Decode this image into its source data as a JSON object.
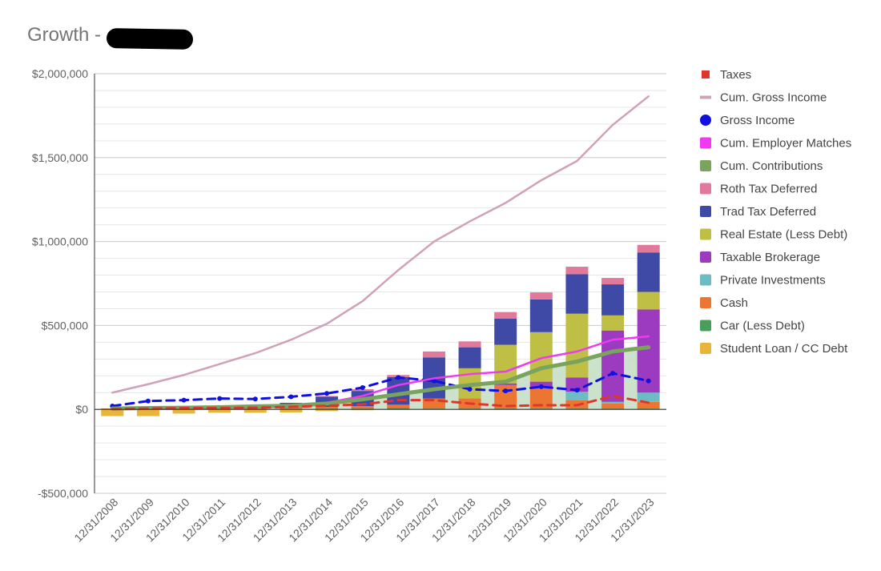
{
  "chart_data": {
    "type": "bar",
    "title": "Growth -",
    "title_redacted": true,
    "stacked": true,
    "categories": [
      "12/31/2008",
      "12/31/2009",
      "12/31/2010",
      "12/31/2011",
      "12/31/2012",
      "12/31/2013",
      "12/31/2014",
      "12/31/2015",
      "12/31/2016",
      "12/31/2017",
      "12/31/2018",
      "12/31/2019",
      "12/31/2020",
      "12/31/2021",
      "12/31/2022",
      "12/31/2023"
    ],
    "ylim": [
      -500000,
      2000000
    ],
    "yticks": [
      {
        "value": 2000000,
        "label": "$2,000,000"
      },
      {
        "value": 1500000,
        "label": "$1,500,000"
      },
      {
        "value": 1000000,
        "label": "$1,000,000"
      },
      {
        "value": 500000,
        "label": "$500,000"
      },
      {
        "value": 0,
        "label": "$0"
      },
      {
        "value": -500000,
        "label": "-$500,000"
      }
    ],
    "minor_gridlines_per_major": 5,
    "legend_position": "right",
    "bar_series": [
      {
        "name": "Student Loan / CC Debt",
        "color": "#e8b53a",
        "values": [
          -40000,
          -40000,
          -25000,
          -20000,
          -20000,
          -18000,
          -10000,
          -5000,
          0,
          0,
          0,
          0,
          0,
          0,
          0,
          0
        ]
      },
      {
        "name": "Car (Less Debt)",
        "color": "#4a9e5c",
        "values": [
          3000,
          3000,
          3000,
          3000,
          4000,
          4000,
          5000,
          5000,
          8000,
          5000,
          5000,
          5000,
          5000,
          5000,
          5000,
          5000
        ]
      },
      {
        "name": "Cash",
        "color": "#ec7532",
        "values": [
          3000,
          5000,
          8000,
          8000,
          8000,
          10000,
          10000,
          15000,
          20000,
          60000,
          60000,
          140000,
          130000,
          50000,
          30000,
          40000
        ]
      },
      {
        "name": "Private Investments",
        "color": "#6bbcc4",
        "values": [
          0,
          0,
          0,
          0,
          0,
          0,
          0,
          0,
          0,
          0,
          0,
          0,
          0,
          50000,
          10000,
          55000
        ]
      },
      {
        "name": "Taxable Brokerage",
        "color": "#9c3ac0",
        "values": [
          0,
          0,
          0,
          0,
          0,
          0,
          0,
          0,
          0,
          0,
          0,
          10000,
          30000,
          85000,
          425000,
          495000
        ]
      },
      {
        "name": "Real Estate (Less Debt)",
        "color": "#bfbf45",
        "values": [
          0,
          0,
          0,
          0,
          0,
          0,
          0,
          0,
          0,
          0,
          180000,
          230000,
          295000,
          380000,
          90000,
          105000
        ]
      },
      {
        "name": "Trad Tax Deferred",
        "color": "#3e4aa6",
        "values": [
          0,
          0,
          0,
          0,
          15000,
          25000,
          60000,
          90000,
          165000,
          245000,
          125000,
          155000,
          195000,
          235000,
          185000,
          235000
        ]
      },
      {
        "name": "Roth Tax Deferred",
        "color": "#e0799a",
        "values": [
          0,
          0,
          0,
          0,
          0,
          0,
          5000,
          10000,
          12000,
          35000,
          35000,
          40000,
          42000,
          45000,
          38000,
          45000
        ]
      }
    ],
    "line_series": [
      {
        "name": "Cum. Gross Income",
        "color": "#cfa2b9",
        "style": "solid",
        "values": [
          100000,
          150000,
          205000,
          270000,
          335000,
          415000,
          510000,
          645000,
          830000,
          1000000,
          1120000,
          1230000,
          1365000,
          1480000,
          1695000,
          1865000
        ]
      },
      {
        "name": "Gross Income",
        "color": "#1010e0",
        "style": "dashed",
        "values": [
          20000,
          50000,
          55000,
          65000,
          62000,
          75000,
          95000,
          130000,
          190000,
          170000,
          120000,
          110000,
          135000,
          115000,
          215000,
          170000
        ]
      },
      {
        "name": "Cum. Employer Matches",
        "color": "#ee3af0",
        "style": "solid",
        "values": [
          0,
          4000,
          8000,
          12000,
          18000,
          25000,
          40000,
          80000,
          145000,
          185000,
          210000,
          225000,
          305000,
          345000,
          415000,
          435000
        ]
      },
      {
        "name": "Cum. Contributions",
        "color": "#7aa35e",
        "style": "solid",
        "values": [
          5000,
          8000,
          10000,
          13000,
          18000,
          22000,
          35000,
          60000,
          90000,
          120000,
          145000,
          165000,
          245000,
          285000,
          345000,
          370000
        ]
      },
      {
        "name": "Taxes",
        "color": "#e0352b",
        "style": "dashed",
        "values": [
          2000,
          5000,
          8000,
          8000,
          10000,
          15000,
          22000,
          30000,
          55000,
          55000,
          35000,
          20000,
          25000,
          25000,
          80000,
          40000
        ]
      }
    ],
    "cum_contrib_fill_color": "#c6dfc6",
    "legend": [
      {
        "name": "Taxes",
        "color": "#e0352b",
        "marker": "square-small"
      },
      {
        "name": "Cum. Gross Income",
        "color": "#cfa2b9",
        "marker": "line"
      },
      {
        "name": "Gross Income",
        "color": "#1010e0",
        "marker": "circle"
      },
      {
        "name": "Cum. Employer Matches",
        "color": "#ee3af0",
        "marker": "square"
      },
      {
        "name": "Cum. Contributions",
        "color": "#7aa35e",
        "marker": "square"
      },
      {
        "name": "Roth Tax Deferred",
        "color": "#e0799a",
        "marker": "square"
      },
      {
        "name": "Trad Tax Deferred",
        "color": "#3e4aa6",
        "marker": "square"
      },
      {
        "name": "Real Estate (Less Debt)",
        "color": "#bfbf45",
        "marker": "square"
      },
      {
        "name": "Taxable Brokerage",
        "color": "#9c3ac0",
        "marker": "square"
      },
      {
        "name": "Private Investments",
        "color": "#6bbcc4",
        "marker": "square"
      },
      {
        "name": "Cash",
        "color": "#ec7532",
        "marker": "square"
      },
      {
        "name": "Car (Less Debt)",
        "color": "#4a9e5c",
        "marker": "square"
      },
      {
        "name": "Student Loan / CC Debt",
        "color": "#e8b53a",
        "marker": "square"
      }
    ]
  }
}
